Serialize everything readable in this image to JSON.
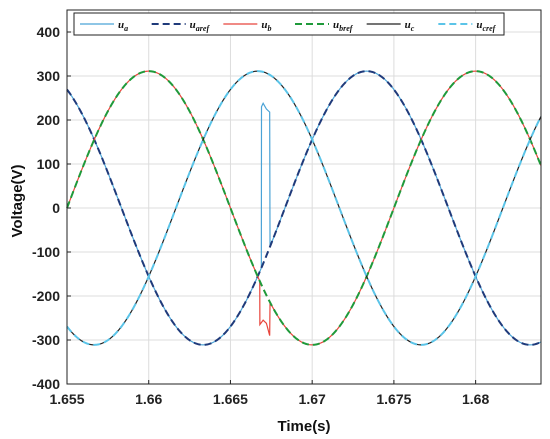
{
  "chart_data": {
    "type": "line",
    "title": "",
    "xlabel": "Time(s)",
    "ylabel": "Voltage(V)",
    "xlim": [
      1.655,
      1.684
    ],
    "ylim": [
      -400,
      450
    ],
    "xticks": [
      1.655,
      1.66,
      1.665,
      1.67,
      1.675,
      1.68
    ],
    "xtick_labels": [
      "1.655",
      "1.66",
      "1.665",
      "1.67",
      "1.675",
      "1.68"
    ],
    "yticks": [
      -400,
      -300,
      -200,
      -100,
      0,
      100,
      200,
      300,
      400
    ],
    "ytick_labels": [
      "-400",
      "-300",
      "-200",
      "-100",
      "0",
      "100",
      "200",
      "300",
      "400"
    ],
    "grid": true,
    "legend_position": "top",
    "waveform": {
      "amplitude": 311,
      "frequency_hz": 50
    },
    "series": [
      {
        "name": "ua",
        "base": "u",
        "sub": "a",
        "color": "#4ba3d6",
        "dash": "solid",
        "phase_deg": 210,
        "transient": [
          [
            1.6669,
            230
          ],
          [
            1.667,
            238
          ],
          [
            1.6672,
            225
          ],
          [
            1.6674,
            218
          ]
        ]
      },
      {
        "name": "uaref",
        "base": "u",
        "sub": "aref",
        "color": "#1f3a7a",
        "dash": "dashed",
        "phase_deg": 210
      },
      {
        "name": "ub",
        "base": "u",
        "sub": "b",
        "color": "#e8453c",
        "dash": "solid",
        "phase_deg": 90,
        "transient": [
          [
            1.6668,
            -265
          ],
          [
            1.667,
            -255
          ],
          [
            1.6672,
            -262
          ],
          [
            1.6674,
            -290
          ]
        ]
      },
      {
        "name": "ubref",
        "base": "u",
        "sub": "bref",
        "color": "#1f9a3a",
        "dash": "dashed",
        "phase_deg": 90
      },
      {
        "name": "uc",
        "base": "u",
        "sub": "c",
        "color": "#222222",
        "dash": "solid",
        "phase_deg": -30
      },
      {
        "name": "ucref",
        "base": "u",
        "sub": "cref",
        "color": "#5bc4e8",
        "dash": "dashed",
        "phase_deg": -30
      }
    ]
  }
}
